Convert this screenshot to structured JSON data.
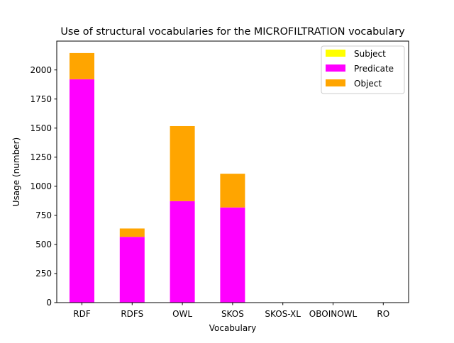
{
  "chart_data": {
    "type": "bar",
    "stacked": true,
    "title": "Use of structural vocabularies for the MICROFILTRATION vocabulary",
    "xlabel": "Vocabulary",
    "ylabel": "Usage (number)",
    "categories": [
      "RDF",
      "RDFS",
      "OWL",
      "SKOS",
      "SKOS-XL",
      "OBOINOWL",
      "RO"
    ],
    "ylim": [
      0,
      2200
    ],
    "yticks": [
      0,
      250,
      500,
      750,
      1000,
      1250,
      1500,
      1750,
      2000
    ],
    "grid": false,
    "legend_position": "top-right",
    "series": [
      {
        "name": "Subject",
        "color": "#ffff00",
        "values": [
          0,
          0,
          0,
          0,
          0,
          0,
          0
        ]
      },
      {
        "name": "Predicate",
        "color": "#ff00ff",
        "values": [
          1920,
          565,
          872,
          818,
          0,
          0,
          0
        ]
      },
      {
        "name": "Object",
        "color": "#ffa500",
        "values": [
          225,
          72,
          645,
          290,
          0,
          0,
          0
        ]
      }
    ]
  }
}
